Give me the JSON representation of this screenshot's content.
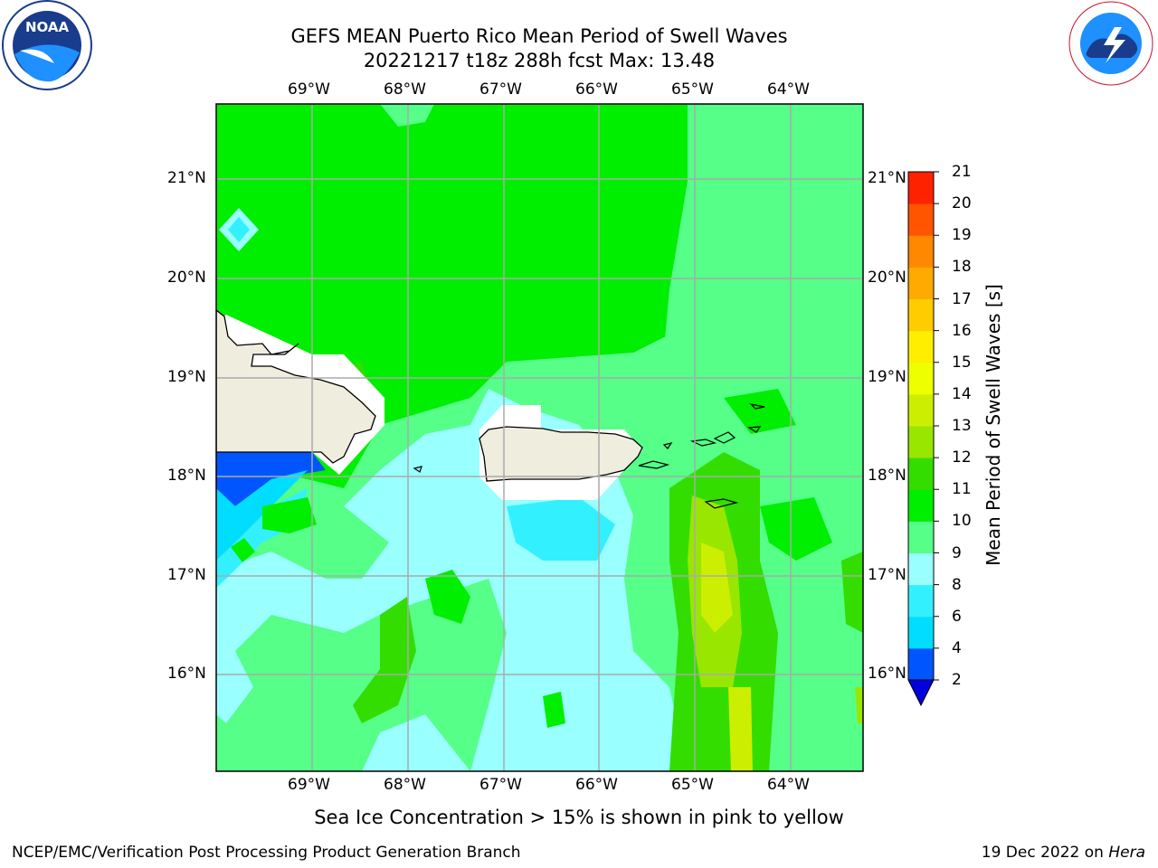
{
  "title_line1": "GEFS MEAN Puerto Rico Mean Period of Swell Waves",
  "title_line2": "20221217 t18z 288h fcst   Max: 13.48",
  "subtitle": "Sea Ice Concentration > 15% is shown in pink to yellow",
  "footer": {
    "left": "NCEP/EMC/Verification Post Processing Product Generation Branch",
    "date": "19 Dec 2022 on ",
    "host": "Hera"
  },
  "colorbar": {
    "label": "Mean Period of Swell Waves [s]",
    "ticks": [
      "2",
      "4",
      "6",
      "8",
      "9",
      "10",
      "11",
      "12",
      "13",
      "14",
      "15",
      "16",
      "17",
      "18",
      "19",
      "20",
      "21"
    ],
    "colors": [
      "#0055ff",
      "#00ddff",
      "#33f0ff",
      "#99ffff",
      "#55ff88",
      "#00ee00",
      "#33dd00",
      "#99e600",
      "#ccee00",
      "#eeff00",
      "#ffee00",
      "#ffcc00",
      "#ffaa00",
      "#ff8800",
      "#ff5500",
      "#ff2200"
    ],
    "under_color": "#0000dd"
  },
  "map": {
    "lon_labels": [
      "69°W",
      "68°W",
      "67°W",
      "66°W",
      "65°W",
      "64°W"
    ],
    "lat_labels": [
      "21°N",
      "20°N",
      "19°N",
      "18°N",
      "17°N",
      "16°N"
    ],
    "land_color": "#efedde",
    "masked_color": "#ffffff"
  },
  "logos": {
    "left": "NOAA",
    "right": "NATIONAL WEATHER SERVICE"
  }
}
